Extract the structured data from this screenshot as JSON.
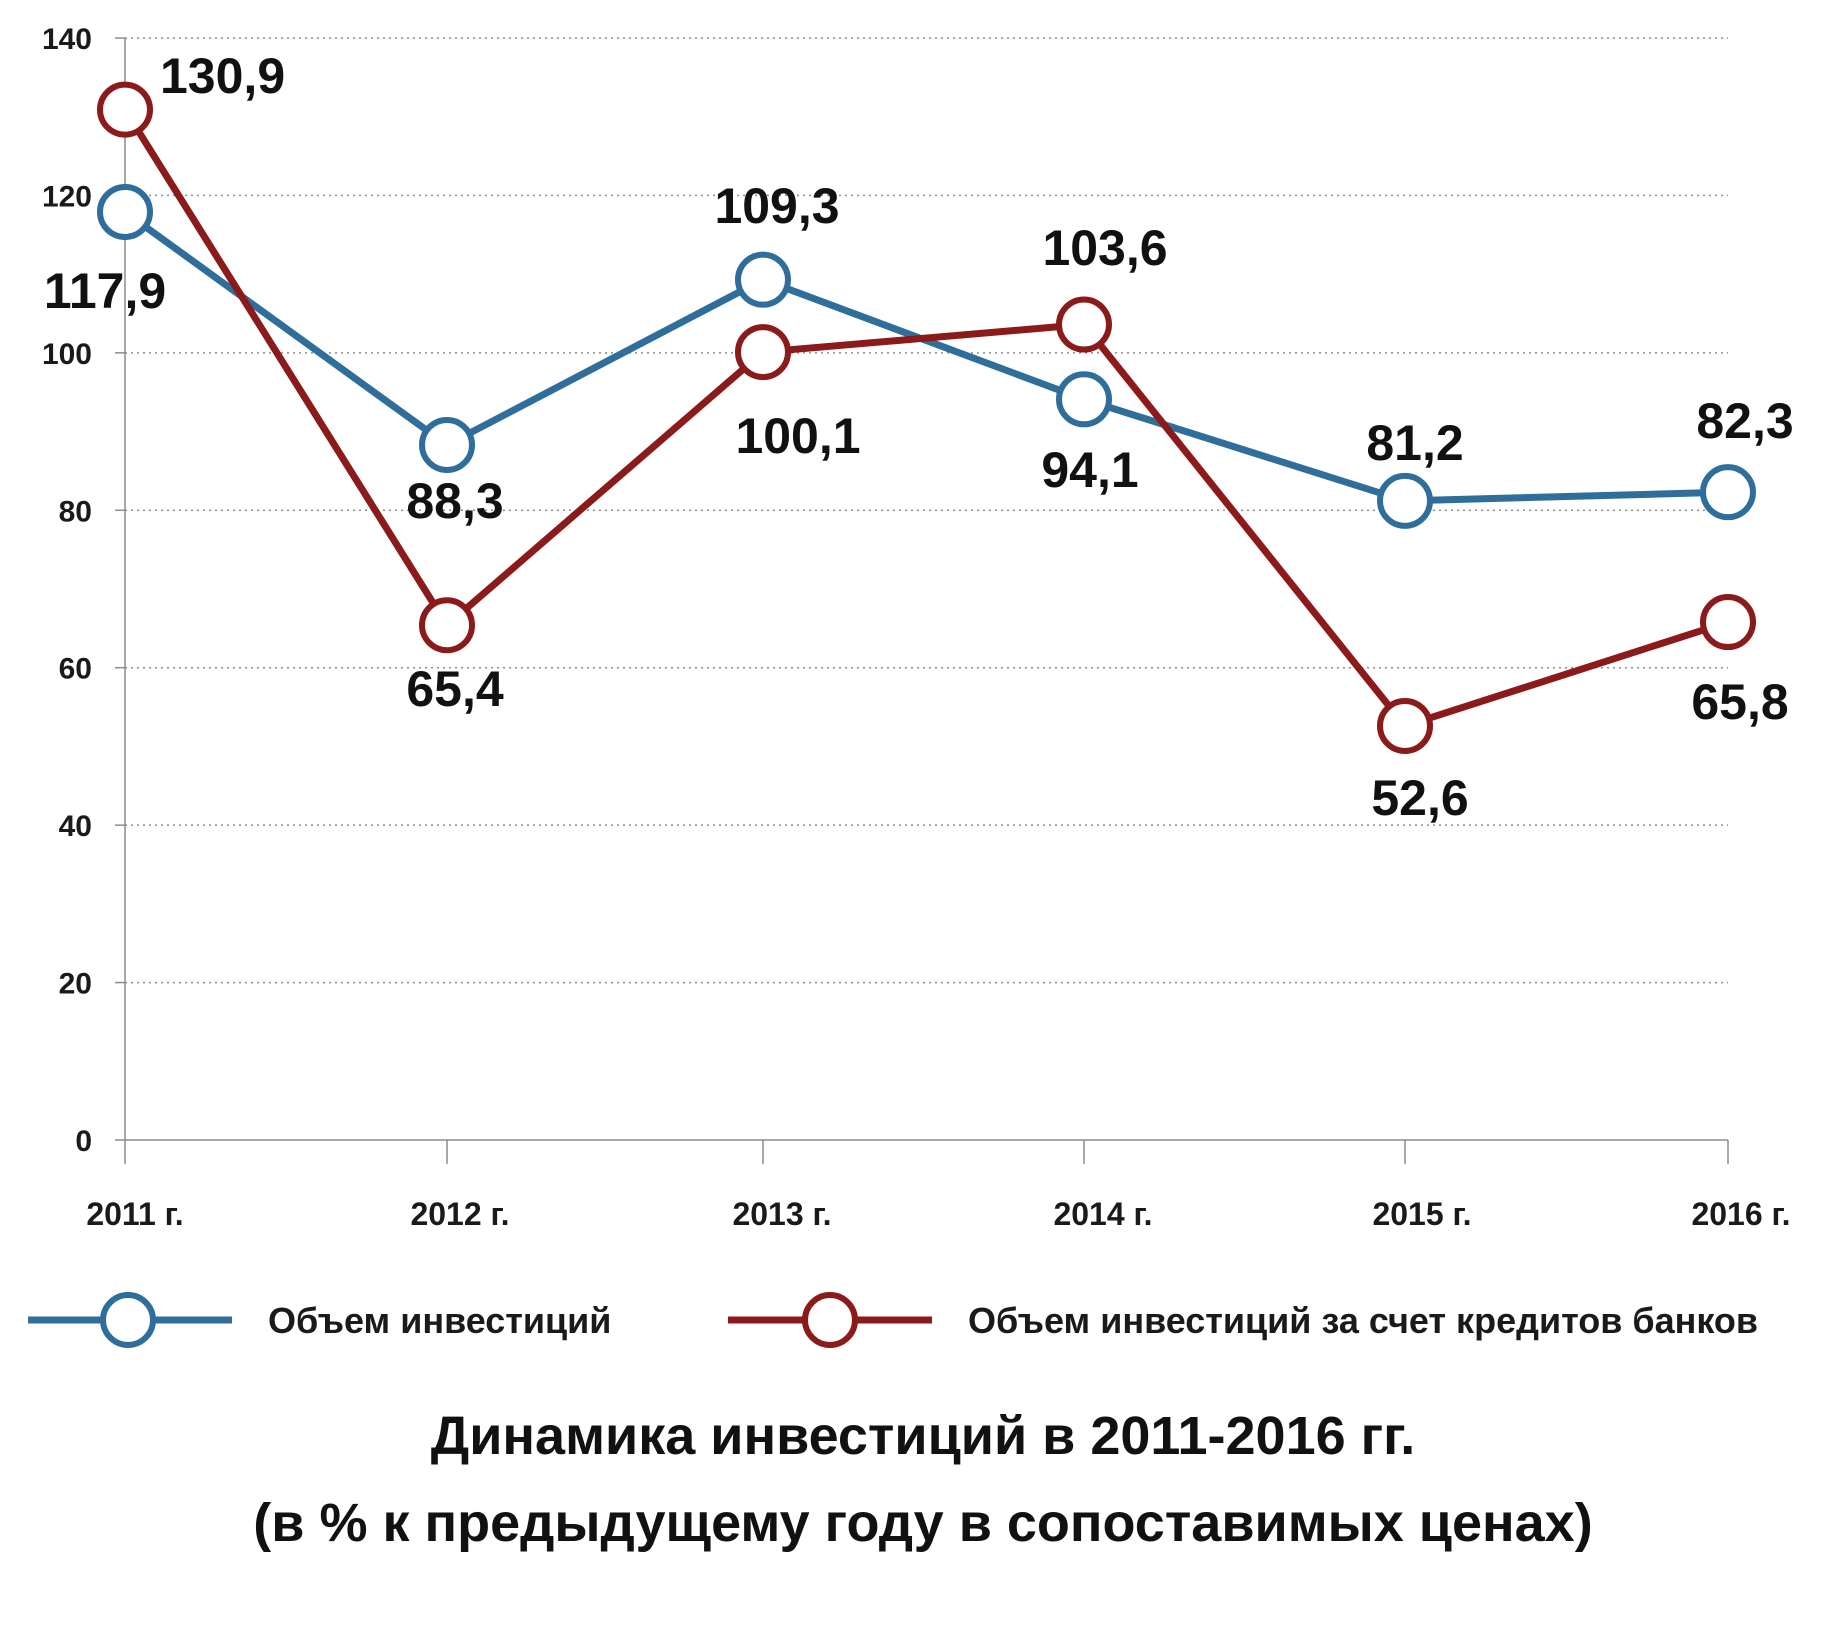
{
  "chart_data": {
    "type": "line",
    "title": "Динамика инвестиций в 2011-2016 гг.",
    "subtitle": "(в % к предыдущему году в сопоставимых ценах)",
    "categories": [
      "2011 г.",
      "2012 г.",
      "2013 г.",
      "2014 г.",
      "2015 г.",
      "2016 г."
    ],
    "ylim": [
      0,
      140
    ],
    "yticks": [
      0,
      20,
      40,
      60,
      80,
      100,
      120,
      140
    ],
    "ytick_labels": [
      "0",
      "20",
      "40",
      "60",
      "80",
      "100",
      "120",
      "140"
    ],
    "grid": "horizontal dotted",
    "legend_position": "bottom",
    "series": [
      {
        "name": "Объем инвестиций",
        "color": "#2f6e9a",
        "values": [
          117.9,
          88.3,
          109.3,
          94.1,
          81.2,
          82.3
        ],
        "labels": [
          "117,9",
          "88,3",
          "109,3",
          "94,1",
          "81,2",
          "82,3"
        ]
      },
      {
        "name": "Объем инвестиций за счет кредитов банков",
        "color": "#8b1a1a",
        "values": [
          130.9,
          65.4,
          100.1,
          103.6,
          52.6,
          65.8
        ],
        "labels": [
          "130,9",
          "65,4",
          "100,1",
          "103,6",
          "52,6",
          "65,8"
        ]
      }
    ]
  }
}
